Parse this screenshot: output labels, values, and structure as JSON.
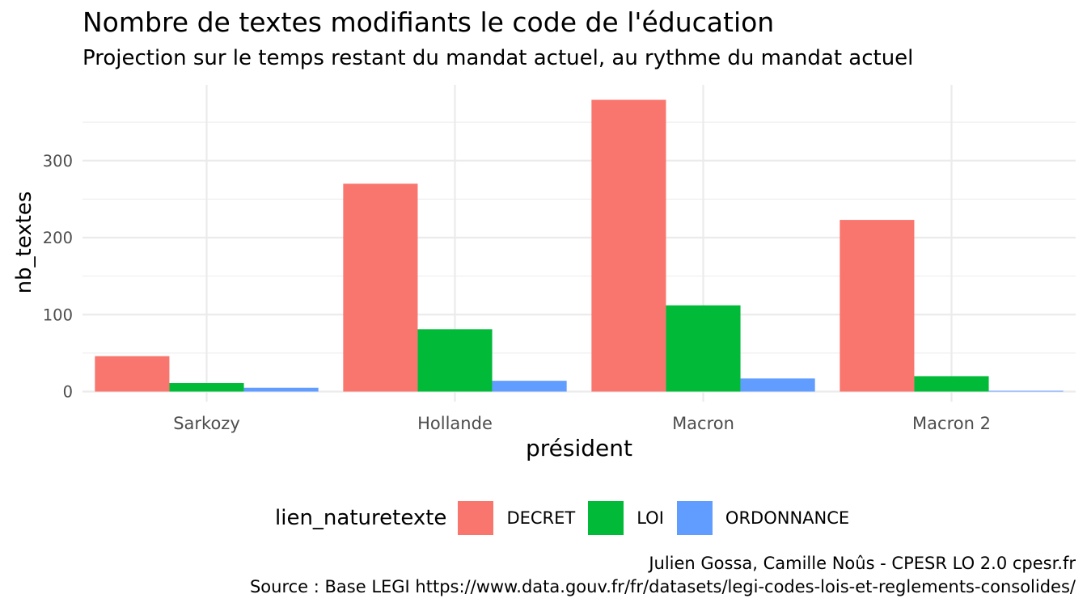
{
  "chart_data": {
    "type": "bar",
    "title": "Nombre de textes modifiants le code de l'éducation",
    "subtitle": "Projection sur le temps restant du mandat actuel, au rythme du mandat actuel",
    "xlabel": "président",
    "ylabel": "nb_textes",
    "categories": [
      "Sarkozy",
      "Hollande",
      "Macron",
      "Macron 2"
    ],
    "series": [
      {
        "name": "DECRET",
        "color": "#F8766D",
        "values": [
          46,
          270,
          379,
          223
        ]
      },
      {
        "name": "LOI",
        "color": "#00BA38",
        "values": [
          11,
          81,
          112,
          20
        ]
      },
      {
        "name": "ORDONNANCE",
        "color": "#619CFF",
        "values": [
          5,
          14,
          17,
          1
        ]
      }
    ],
    "yticks": [
      0,
      100,
      200,
      300
    ],
    "ylim": [
      0,
      380
    ],
    "grid": true,
    "legend": {
      "title": "lien_naturetexte",
      "position": "bottom"
    },
    "caption": [
      "Julien Gossa, Camille Noûs - CPESR LO 2.0 cpesr.fr",
      "Source : Base LEGI https://www.data.gouv.fr/fr/datasets/legi-codes-lois-et-reglements-consolides/"
    ]
  }
}
